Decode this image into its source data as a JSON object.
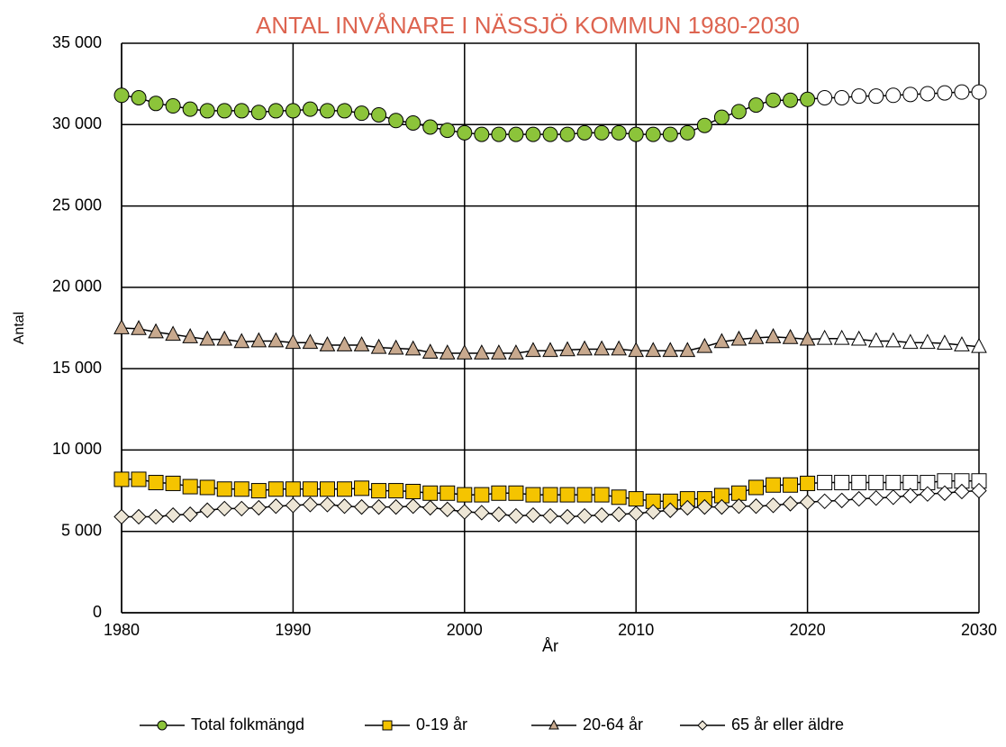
{
  "chart_data": {
    "type": "line",
    "title": "ANTAL INVÅNARE I NÄSSJÖ KOMMUN 1980-2030",
    "x_label": "År",
    "y_label": "Antal",
    "x": [
      1980,
      1981,
      1982,
      1983,
      1984,
      1985,
      1986,
      1987,
      1988,
      1989,
      1990,
      1991,
      1992,
      1993,
      1994,
      1995,
      1996,
      1997,
      1998,
      1999,
      2000,
      2001,
      2002,
      2003,
      2004,
      2005,
      2006,
      2007,
      2008,
      2009,
      2010,
      2011,
      2012,
      2013,
      2014,
      2015,
      2016,
      2017,
      2018,
      2019,
      2020,
      2021,
      2022,
      2023,
      2024,
      2025,
      2026,
      2027,
      2028,
      2029,
      2030
    ],
    "xlim": [
      1980,
      2030
    ],
    "xticks": [
      1980,
      1990,
      2000,
      2010,
      2020,
      2030
    ],
    "ylim": [
      0,
      35000
    ],
    "yticks": [
      0,
      {
        "value": 5000,
        "label": "5 000"
      },
      {
        "value": 10000,
        "label": "10 000"
      },
      {
        "value": 15000,
        "label": "15 000"
      },
      {
        "value": 20000,
        "label": "20 000"
      },
      {
        "value": 25000,
        "label": "25 000"
      },
      {
        "value": 30000,
        "label": "30 000"
      },
      {
        "value": 35000,
        "label": "35 000"
      }
    ],
    "grid": true,
    "legend": "bottom",
    "forecast_from": 2021,
    "forecast_color": "#ffffff",
    "series": [
      {
        "name": "Total folkmängd",
        "color": "#8cc43a",
        "marker": "circle",
        "values": [
          31800,
          31650,
          31300,
          31150,
          30950,
          30850,
          30850,
          30850,
          30750,
          30850,
          30850,
          30950,
          30850,
          30850,
          30700,
          30600,
          30250,
          30100,
          29850,
          29650,
          29500,
          29400,
          29400,
          29400,
          29400,
          29400,
          29400,
          29500,
          29500,
          29500,
          29400,
          29400,
          29400,
          29500,
          29950,
          30450,
          30800,
          31200,
          31500,
          31500,
          31550,
          31650,
          31650,
          31750,
          31750,
          31800,
          31850,
          31900,
          31950,
          32000,
          32000
        ]
      },
      {
        "name": "0-19 år",
        "color": "#f5c400",
        "marker": "square",
        "values": [
          8200,
          8200,
          8000,
          7950,
          7750,
          7700,
          7600,
          7600,
          7500,
          7600,
          7600,
          7600,
          7600,
          7600,
          7650,
          7500,
          7500,
          7450,
          7350,
          7350,
          7250,
          7250,
          7350,
          7350,
          7250,
          7250,
          7250,
          7250,
          7250,
          7100,
          7000,
          6850,
          6850,
          7000,
          7000,
          7200,
          7350,
          7700,
          7850,
          7850,
          7950,
          8000,
          8000,
          8000,
          8000,
          8000,
          8000,
          8000,
          8100,
          8100,
          8100
        ]
      },
      {
        "name": "20-64 år",
        "color": "#c8a98e",
        "marker": "triangle",
        "values": [
          17500,
          17450,
          17250,
          17100,
          16950,
          16800,
          16800,
          16650,
          16700,
          16700,
          16600,
          16600,
          16450,
          16450,
          16450,
          16300,
          16250,
          16200,
          16000,
          15950,
          15950,
          15950,
          15950,
          15950,
          16100,
          16100,
          16150,
          16200,
          16200,
          16200,
          16100,
          16100,
          16100,
          16100,
          16350,
          16650,
          16800,
          16900,
          16950,
          16900,
          16800,
          16850,
          16850,
          16800,
          16700,
          16700,
          16600,
          16600,
          16550,
          16450,
          16350
        ]
      },
      {
        "name": "65 år eller äldre",
        "color": "#ede6d6",
        "marker": "diamond",
        "values": [
          5900,
          5900,
          5900,
          6000,
          6050,
          6300,
          6400,
          6400,
          6450,
          6550,
          6600,
          6650,
          6650,
          6550,
          6500,
          6500,
          6500,
          6550,
          6450,
          6350,
          6200,
          6150,
          6050,
          5950,
          6000,
          5950,
          5900,
          5950,
          6000,
          6050,
          6100,
          6200,
          6300,
          6450,
          6500,
          6500,
          6550,
          6550,
          6600,
          6700,
          6800,
          6850,
          6900,
          7000,
          7050,
          7100,
          7200,
          7300,
          7350,
          7450,
          7500
        ]
      }
    ]
  }
}
